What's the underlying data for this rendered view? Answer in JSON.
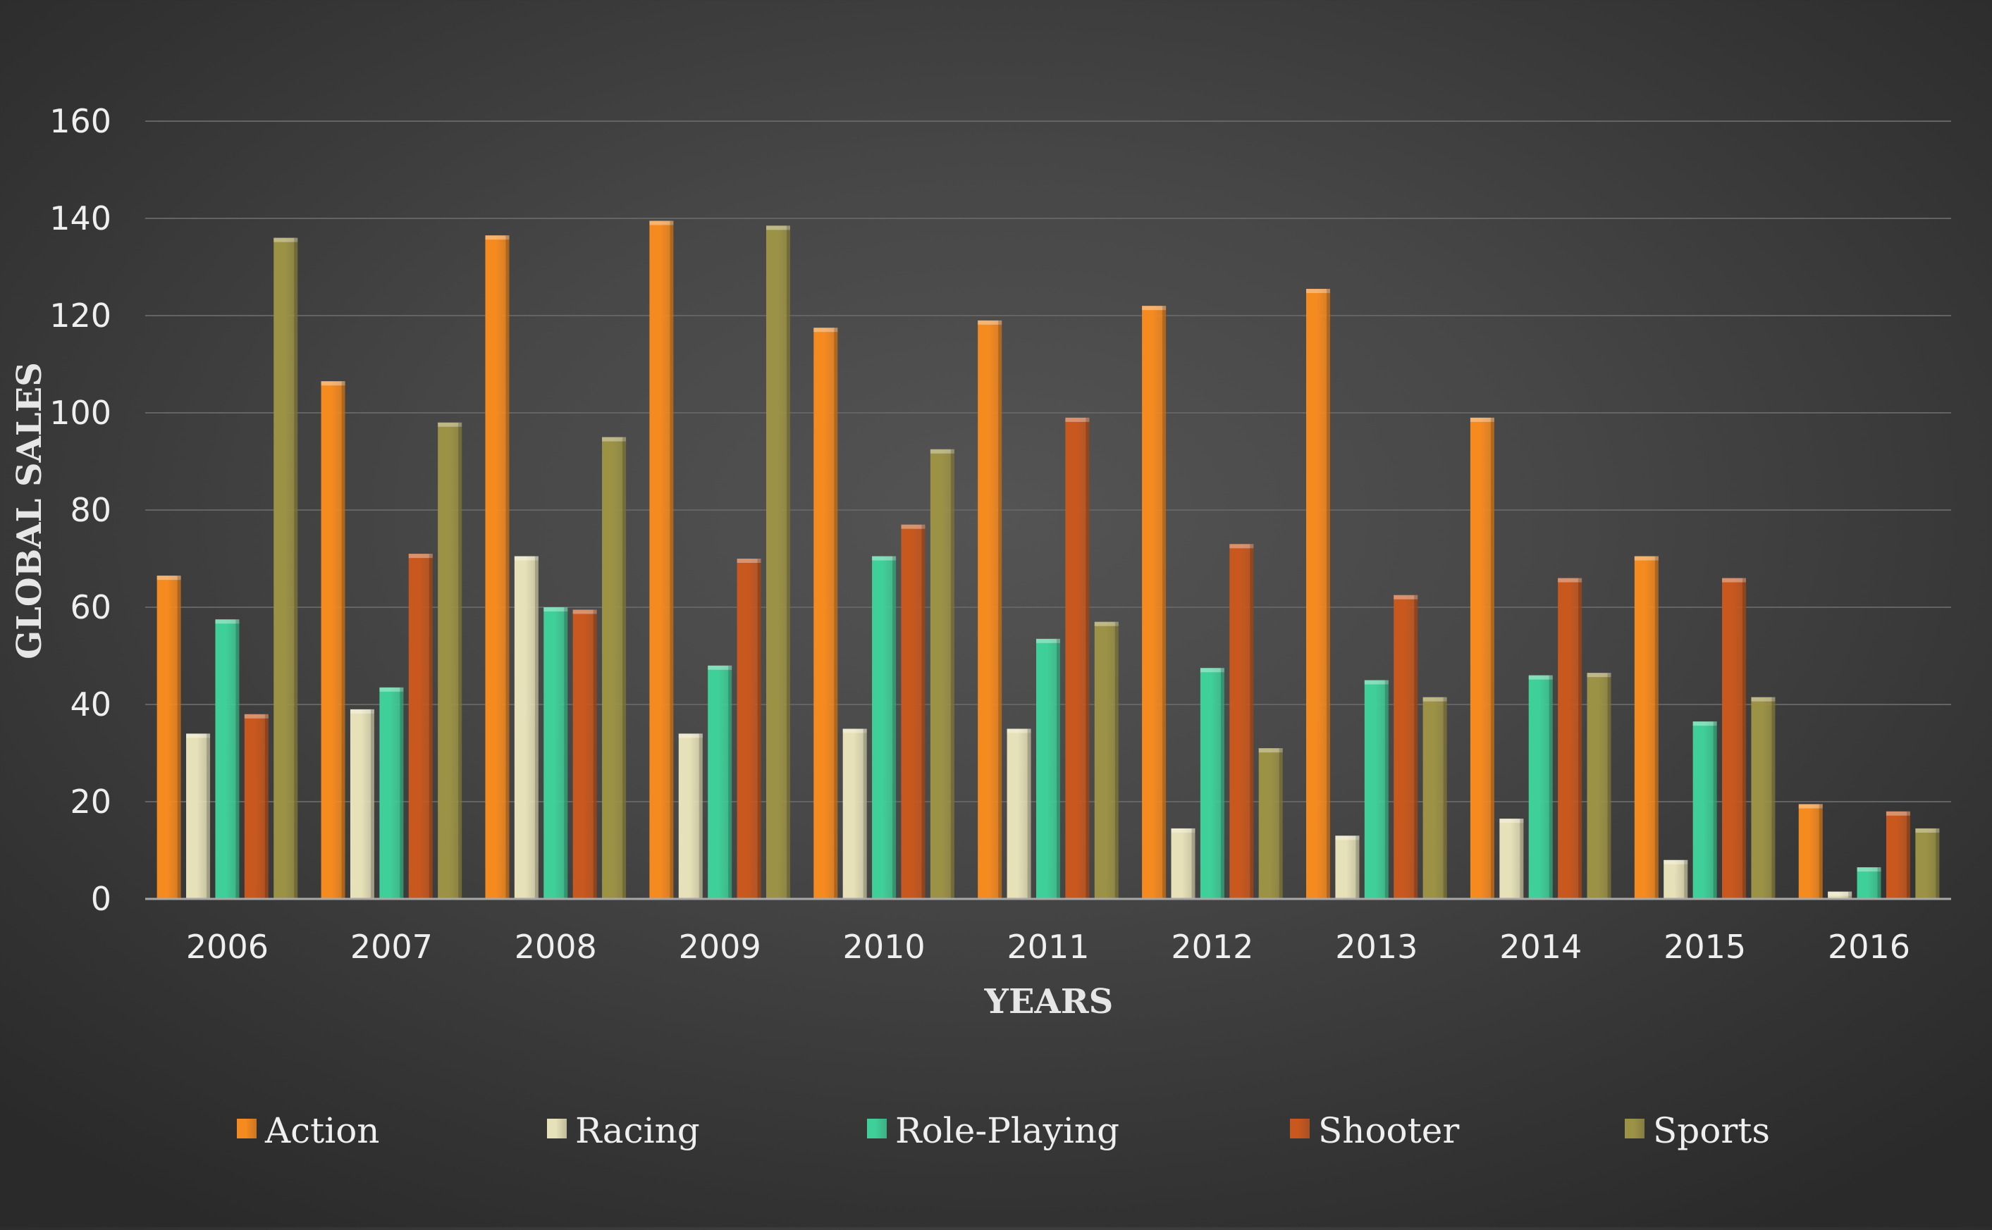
{
  "chart_data": {
    "type": "bar",
    "title": "",
    "xlabel": "YEARS",
    "ylabel": "GLOBAL SALES",
    "ylim": [
      0,
      160
    ],
    "yticks": [
      0,
      20,
      40,
      60,
      80,
      100,
      120,
      140,
      160
    ],
    "grid": true,
    "legend_position": "bottom",
    "categories": [
      "2006",
      "2007",
      "2008",
      "2009",
      "2010",
      "2011",
      "2012",
      "2013",
      "2014",
      "2015",
      "2016"
    ],
    "series": [
      {
        "name": "Action",
        "color": "#f58a1f",
        "values": [
          66.5,
          106.5,
          136.5,
          139.5,
          117.5,
          119,
          122,
          125.5,
          99,
          70.5,
          19.5
        ]
      },
      {
        "name": "Racing",
        "color": "#e6e1b8",
        "values": [
          34,
          39,
          70.5,
          34,
          35,
          35,
          14.5,
          13,
          16.5,
          8,
          1.5
        ]
      },
      {
        "name": "Role-Playing",
        "color": "#3fcf98",
        "values": [
          57.5,
          43.5,
          60,
          48,
          70.5,
          53.5,
          47.5,
          45,
          46,
          36.5,
          6.5
        ]
      },
      {
        "name": "Shooter",
        "color": "#c8581e",
        "values": [
          38,
          71,
          59.5,
          70,
          77,
          99,
          73,
          62.5,
          66,
          66,
          18
        ]
      },
      {
        "name": "Sports",
        "color": "#9c9246",
        "values": [
          136,
          98,
          95,
          138.5,
          92.5,
          57,
          31,
          41.5,
          46.5,
          41.5,
          14.5
        ]
      }
    ]
  }
}
